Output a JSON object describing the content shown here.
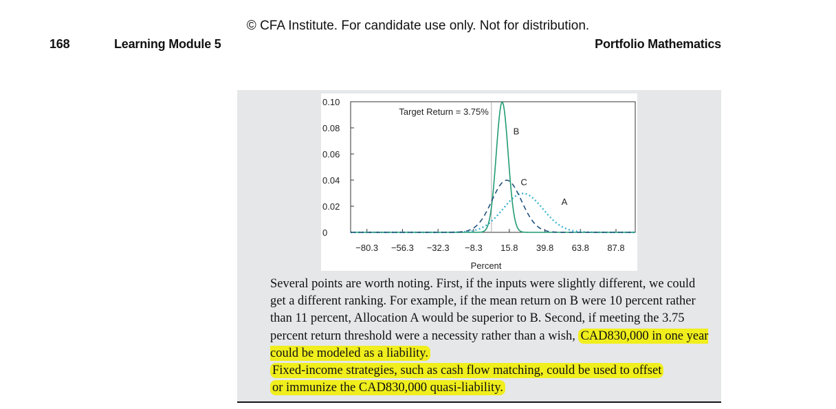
{
  "header": {
    "copyright": "© CFA Institute. For candidate use only. Not for distribution.",
    "page_number": "168",
    "module": "Learning Module 5",
    "section": "Portfolio Mathematics"
  },
  "chart_data": {
    "type": "line",
    "xlabel": "Percent",
    "ylabel": "",
    "x_ticks": [
      "−80.3",
      "−56.3",
      "−32.3",
      "−8.3",
      "15.8",
      "39.8",
      "63.8",
      "87.8"
    ],
    "y_ticks": [
      "0",
      "0.02",
      "0.04",
      "0.06",
      "0.08",
      "0.10"
    ],
    "xlim": [
      -91.3,
      100.8
    ],
    "ylim": [
      0,
      0.1
    ],
    "annotation": "Target Return = 3.75%",
    "target_return": 3.75,
    "series": [
      {
        "name": "A",
        "style": "dotted",
        "color": "#3ab3cf",
        "mean": 25.0,
        "sd": 13.4
      },
      {
        "name": "B",
        "style": "solid",
        "color": "#1f9a73",
        "mean": 11.0,
        "sd": 4.0
      },
      {
        "name": "C",
        "style": "dashed",
        "color": "#1f4f7a",
        "mean": 14.0,
        "sd": 10.0
      }
    ]
  },
  "paragraph": {
    "plain": "Several points are worth noting. First, if the inputs were slightly different, we could get a different ranking. For example, if the mean return on B were 10 percent rather than 11 percent, Allocation A would be superior to B. Second, if meeting the 3.75 percent return threshold were a necessity rather than a wish, ",
    "hl1": "CAD830,000 in one year could be modeled as a liability.",
    "hl2": "Fixed-income strategies, such as cash flow matching, could be used to offset",
    "hl3": "or immunize the CAD830,000 quasi-liability."
  }
}
